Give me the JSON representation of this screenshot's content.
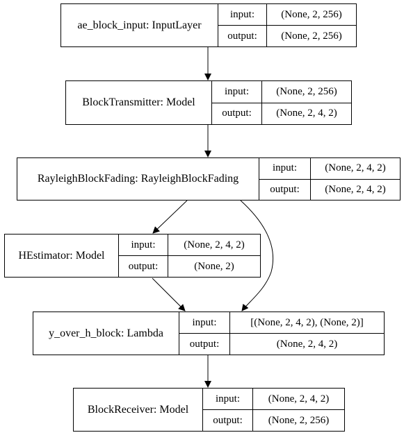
{
  "diagram": {
    "nodes": [
      {
        "id": "ae_block_input",
        "name": "ae_block_input: InputLayer",
        "input_label": "input:",
        "input_value": "(None, 2, 256)",
        "output_label": "output:",
        "output_value": "(None, 2, 256)"
      },
      {
        "id": "BlockTransmitter",
        "name": "BlockTransmitter: Model",
        "input_label": "input:",
        "input_value": "(None, 2, 256)",
        "output_label": "output:",
        "output_value": "(None, 2, 4, 2)"
      },
      {
        "id": "RayleighBlockFading",
        "name": "RayleighBlockFading: RayleighBlockFading",
        "input_label": "input:",
        "input_value": "(None, 2, 4, 2)",
        "output_label": "output:",
        "output_value": "(None, 2, 4, 2)"
      },
      {
        "id": "HEstimator",
        "name": "HEstimator: Model",
        "input_label": "input:",
        "input_value": "(None, 2, 4, 2)",
        "output_label": "output:",
        "output_value": "(None, 2)"
      },
      {
        "id": "y_over_h_block",
        "name": "y_over_h_block: Lambda",
        "input_label": "input:",
        "input_value": "[(None, 2, 4, 2), (None, 2)]",
        "output_label": "output:",
        "output_value": "(None, 2, 4, 2)"
      },
      {
        "id": "BlockReceiver",
        "name": "BlockReceiver: Model",
        "input_label": "input:",
        "input_value": "(None, 2, 4, 2)",
        "output_label": "output:",
        "output_value": "(None, 2, 256)"
      }
    ],
    "edges": [
      {
        "from": "ae_block_input",
        "to": "BlockTransmitter"
      },
      {
        "from": "BlockTransmitter",
        "to": "RayleighBlockFading"
      },
      {
        "from": "RayleighBlockFading",
        "to": "HEstimator"
      },
      {
        "from": "RayleighBlockFading",
        "to": "y_over_h_block"
      },
      {
        "from": "HEstimator",
        "to": "y_over_h_block"
      },
      {
        "from": "y_over_h_block",
        "to": "BlockReceiver"
      }
    ]
  }
}
